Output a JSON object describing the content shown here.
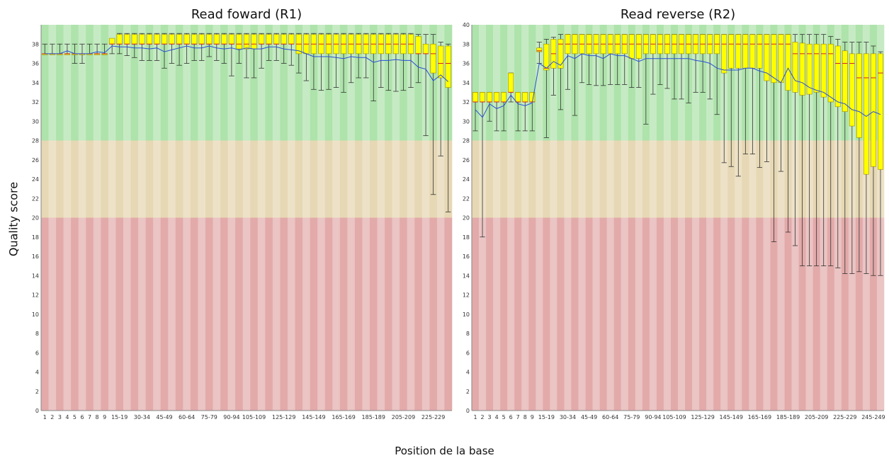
{
  "figure": {
    "y_label": "Quality score",
    "x_label": "Position de la base"
  },
  "colors": {
    "good_zone": "#aee3ab",
    "good_zone_alt": "#c6ebc4",
    "warn_zone": "#e6d8b4",
    "warn_zone_alt": "#ede2c7",
    "bad_zone": "#e3aaaa",
    "bad_zone_alt": "#ebc4c4",
    "box_fill": "#ffff00",
    "box_stroke": "#a08a00",
    "median": "#d22020",
    "mean_line": "#2a4fd6",
    "whisker": "#333333"
  },
  "chart_data": [
    {
      "type": "box",
      "title": "Read foward (R1)",
      "ylabel": "Quality score",
      "xlabel": "Position de la base",
      "ylim": [
        0,
        40
      ],
      "y_ticks": [
        0,
        2,
        4,
        6,
        8,
        10,
        12,
        14,
        16,
        18,
        20,
        22,
        24,
        26,
        28,
        30,
        32,
        34,
        36,
        38
      ],
      "zones": [
        {
          "from": 28,
          "to": 40,
          "label": "good"
        },
        {
          "from": 20,
          "to": 28,
          "label": "ok"
        },
        {
          "from": 0,
          "to": 20,
          "label": "poor"
        }
      ],
      "categories": [
        "1",
        "2",
        "3",
        "4",
        "5",
        "6",
        "7",
        "8",
        "9",
        "10-14",
        "15-19",
        "20-24",
        "25-29",
        "30-34",
        "35-39",
        "40-44",
        "45-49",
        "50-54",
        "55-59",
        "60-64",
        "65-69",
        "70-74",
        "75-79",
        "80-84",
        "85-89",
        "90-94",
        "95-99",
        "100-104",
        "105-109",
        "110-114",
        "115-119",
        "120-124",
        "125-129",
        "130-134",
        "135-139",
        "140-144",
        "145-149",
        "150-154",
        "155-159",
        "160-164",
        "165-169",
        "170-174",
        "175-179",
        "180-184",
        "185-189",
        "190-194",
        "195-199",
        "200-204",
        "205-209",
        "210-214",
        "215-219",
        "220-224",
        "225-229",
        "230-234",
        "235-239"
      ],
      "x_tick_labels": [
        "1",
        "2",
        "3",
        "4",
        "5",
        "6",
        "7",
        "8",
        "9",
        "15-19",
        "30-34",
        "45-49",
        "60-64",
        "75-79",
        "90-94",
        "105-109",
        "125-129",
        "145-149",
        "165-169",
        "185-189",
        "205-209",
        "225-229"
      ],
      "series": [
        {
          "stat": "median",
          "values": [
            37,
            37,
            37,
            37,
            37,
            37,
            37,
            37,
            37,
            38,
            38,
            38,
            38,
            38,
            38,
            38,
            38,
            38,
            38,
            38,
            38,
            38,
            38,
            38,
            38,
            38,
            38,
            38,
            38,
            38,
            38,
            38,
            38,
            38,
            38,
            38,
            38,
            38,
            38,
            38,
            38,
            38,
            38,
            38,
            38,
            38,
            38,
            38,
            38,
            38,
            37,
            37,
            37,
            36,
            36
          ]
        },
        {
          "stat": "q1",
          "values": [
            37,
            37,
            37,
            37,
            37,
            37,
            37,
            37,
            37,
            38,
            38,
            38,
            38,
            38,
            38,
            38,
            38,
            38,
            38,
            38,
            38,
            38,
            38,
            38,
            38,
            38,
            37.5,
            37.5,
            37.5,
            38,
            38,
            38,
            38,
            38,
            37,
            37,
            37,
            37,
            37,
            37,
            37,
            37,
            37,
            37,
            37,
            37,
            37,
            37,
            37,
            37,
            37,
            37,
            35,
            34.5,
            33.5
          ]
        },
        {
          "stat": "q3",
          "values": [
            37,
            37,
            37,
            37,
            37,
            37,
            37,
            37,
            37,
            38.6,
            39,
            39,
            39,
            39,
            39,
            39,
            39,
            39,
            39,
            39,
            39,
            39,
            39,
            39,
            39,
            39,
            39,
            39,
            39,
            39,
            39,
            39,
            39,
            39,
            39,
            39,
            39,
            39,
            39,
            39,
            39,
            39,
            39,
            39,
            39,
            39,
            39,
            39,
            39,
            39,
            38.8,
            38,
            38,
            37.8,
            37.8
          ]
        },
        {
          "stat": "whisker_low",
          "values": [
            37,
            37,
            37,
            37,
            36,
            36,
            37,
            37,
            37,
            37,
            37,
            36.8,
            36.6,
            36.3,
            36.3,
            36.3,
            35.5,
            36,
            35.8,
            36,
            36.3,
            36.3,
            36.7,
            36.3,
            36,
            34.7,
            36,
            34.5,
            34.5,
            35.5,
            36.3,
            36.3,
            36,
            35.8,
            35,
            34.2,
            33.3,
            33.2,
            33.3,
            33.5,
            33,
            34,
            34.5,
            34.5,
            32.1,
            33.5,
            33.2,
            33.1,
            33.2,
            33.5,
            34,
            28.5,
            22.4,
            26.4,
            20.6
          ]
        },
        {
          "stat": "whisker_high",
          "values": [
            38,
            38,
            38,
            38,
            38,
            38,
            38,
            38,
            38,
            38.3,
            39.1,
            39.1,
            39.1,
            39.1,
            39.1,
            39.1,
            39.1,
            39.1,
            39.1,
            39.1,
            39.1,
            39.1,
            39.1,
            39.1,
            39.1,
            39.1,
            39.1,
            39.1,
            39.1,
            39.1,
            39.1,
            39.1,
            39.1,
            39.1,
            39.1,
            39.1,
            39.1,
            39.1,
            39.1,
            39.1,
            39.1,
            39.1,
            39.1,
            39.1,
            39.1,
            39.1,
            39.1,
            39.1,
            39.1,
            39.1,
            39,
            39,
            39,
            38.2,
            38
          ]
        },
        {
          "stat": "mean",
          "values": [
            37,
            37,
            37,
            37.3,
            37,
            37,
            37,
            37.2,
            37.1,
            37.8,
            37.7,
            37.7,
            37.6,
            37.6,
            37.5,
            37.6,
            37.2,
            37.4,
            37.6,
            37.8,
            37.6,
            37.6,
            37.8,
            37.6,
            37.5,
            37.6,
            37.4,
            37.6,
            37.5,
            37.5,
            37.7,
            37.7,
            37.5,
            37.4,
            37.3,
            37,
            36.7,
            36.7,
            36.7,
            36.6,
            36.5,
            36.7,
            36.6,
            36.6,
            36.1,
            36.3,
            36.3,
            36.4,
            36.3,
            36.3,
            35.6,
            35.4,
            34.2,
            34.8,
            34.1
          ]
        }
      ]
    },
    {
      "type": "box",
      "title": "Read reverse (R2)",
      "ylabel": "Quality score",
      "xlabel": "Position de la base",
      "ylim": [
        0,
        40
      ],
      "y_ticks": [
        0,
        2,
        4,
        6,
        8,
        10,
        12,
        14,
        16,
        18,
        20,
        22,
        24,
        26,
        28,
        30,
        32,
        34,
        36,
        38,
        40
      ],
      "zones": [
        {
          "from": 28,
          "to": 40,
          "label": "good"
        },
        {
          "from": 20,
          "to": 28,
          "label": "ok"
        },
        {
          "from": 0,
          "to": 20,
          "label": "poor"
        }
      ],
      "categories": [
        "1",
        "2",
        "3",
        "4",
        "5",
        "6",
        "7",
        "8",
        "9",
        "10-14",
        "15-19",
        "20-24",
        "25-29",
        "30-34",
        "35-39",
        "40-44",
        "45-49",
        "50-54",
        "55-59",
        "60-64",
        "65-69",
        "70-74",
        "75-79",
        "80-84",
        "85-89",
        "90-94",
        "95-99",
        "100-104",
        "105-109",
        "110-114",
        "115-119",
        "120-124",
        "125-129",
        "130-134",
        "135-139",
        "140-144",
        "145-149",
        "150-154",
        "155-159",
        "160-164",
        "165-169",
        "170-174",
        "175-179",
        "180-184",
        "185-189",
        "190-194",
        "195-199",
        "200-204",
        "205-209",
        "210-214",
        "215-219",
        "220-224",
        "225-229",
        "230-234",
        "235-239",
        "240-244",
        "245-249",
        "250-251"
      ],
      "x_tick_labels": [
        "1",
        "2",
        "3",
        "4",
        "5",
        "6",
        "7",
        "8",
        "9",
        "15-19",
        "30-34",
        "45-49",
        "60-64",
        "75-79",
        "90-94",
        "105-109",
        "125-129",
        "145-149",
        "165-169",
        "185-189",
        "205-209",
        "225-229",
        "245-249"
      ],
      "series": [
        {
          "stat": "median",
          "values": [
            32,
            32,
            32,
            32,
            32,
            33,
            32,
            32,
            32,
            37.3,
            35.5,
            37,
            38,
            38,
            38,
            38,
            38,
            38,
            38,
            38,
            38,
            38,
            38,
            38,
            38,
            38,
            38,
            38,
            38,
            38,
            38,
            38,
            38,
            38,
            38,
            38,
            38,
            38,
            38,
            38,
            38,
            38,
            38,
            38,
            38,
            37,
            37,
            37,
            37,
            37,
            37,
            36,
            36,
            36,
            34.5,
            34.5,
            34.5,
            35
          ]
        },
        {
          "stat": "q1",
          "values": [
            32,
            32,
            32,
            32,
            32,
            33,
            32,
            32,
            32,
            37.2,
            35.3,
            35.5,
            35.5,
            37,
            37,
            37,
            37,
            37,
            37,
            37,
            37,
            37,
            36.5,
            36.5,
            37,
            37,
            37,
            37,
            37,
            37,
            37,
            37,
            37,
            37,
            37,
            35,
            35.5,
            35.5,
            35.5,
            35.5,
            35.5,
            34.2,
            34,
            34,
            33.2,
            33,
            32.7,
            32.8,
            33,
            32.5,
            32,
            31.5,
            31,
            29.5,
            28.3,
            24.5,
            25.3,
            25
          ]
        },
        {
          "stat": "q3",
          "values": [
            33,
            33,
            33,
            33,
            33,
            35,
            33,
            33,
            33,
            37.6,
            38,
            38.5,
            38.5,
            39,
            39,
            39,
            39,
            39,
            39,
            39,
            39,
            39,
            39,
            39,
            39,
            39,
            39,
            39,
            39,
            39,
            39,
            39,
            39,
            39,
            39,
            39,
            39,
            39,
            39,
            39,
            39,
            39,
            39,
            39,
            39,
            38.2,
            38.1,
            38,
            38,
            38,
            38,
            37.8,
            37.3,
            37,
            37,
            37,
            37,
            37
          ]
        },
        {
          "stat": "whisker_low",
          "values": [
            29,
            18,
            30,
            29,
            29,
            32,
            29,
            29,
            29,
            36,
            28.3,
            32.7,
            31.2,
            33.3,
            30.6,
            34,
            33.8,
            33.7,
            33.7,
            33.8,
            33.8,
            33.8,
            33.5,
            33.5,
            29.7,
            32.8,
            33.8,
            33.4,
            32.3,
            32.3,
            31.9,
            33,
            33,
            32.3,
            30.7,
            25.7,
            25.3,
            24.3,
            26.6,
            26.6,
            25.2,
            25.8,
            17.5,
            24.8,
            18.5,
            17.1,
            15,
            15,
            15,
            15,
            15,
            14.8,
            14.2,
            14.2,
            14.4,
            14.2,
            14,
            14
          ]
        },
        {
          "stat": "whisker_high",
          "values": [
            33,
            33,
            33,
            33,
            33,
            35,
            33,
            33,
            33,
            38.2,
            38.5,
            38.7,
            39,
            39,
            39,
            39,
            39,
            39,
            39,
            39,
            39,
            39,
            39,
            39,
            39,
            39,
            39,
            39,
            39,
            39,
            39,
            39,
            39,
            39,
            39,
            39,
            39,
            39,
            39,
            39,
            39,
            39,
            39,
            39,
            39,
            39,
            39,
            39,
            39,
            39,
            38.8,
            38.5,
            38.2,
            38.2,
            38.2,
            38.2,
            37.8,
            37.2
          ]
        },
        {
          "stat": "mean",
          "values": [
            31.2,
            30.4,
            31.8,
            31.3,
            31.6,
            32.7,
            31.8,
            31.6,
            31.9,
            36,
            35.5,
            36.2,
            35.8,
            36.8,
            36.5,
            37,
            36.8,
            36.8,
            36.5,
            37,
            36.8,
            36.8,
            36.5,
            36.2,
            36.5,
            36.5,
            36.5,
            36.5,
            36.5,
            36.5,
            36.5,
            36.3,
            36.2,
            36,
            35.5,
            35.3,
            35.3,
            35.3,
            35.5,
            35.5,
            35.2,
            35,
            34.5,
            34,
            35.5,
            34.2,
            34,
            33.5,
            33.2,
            33,
            32.5,
            32,
            31.8,
            31.2,
            31,
            30.5,
            31,
            30.7
          ]
        }
      ]
    }
  ]
}
